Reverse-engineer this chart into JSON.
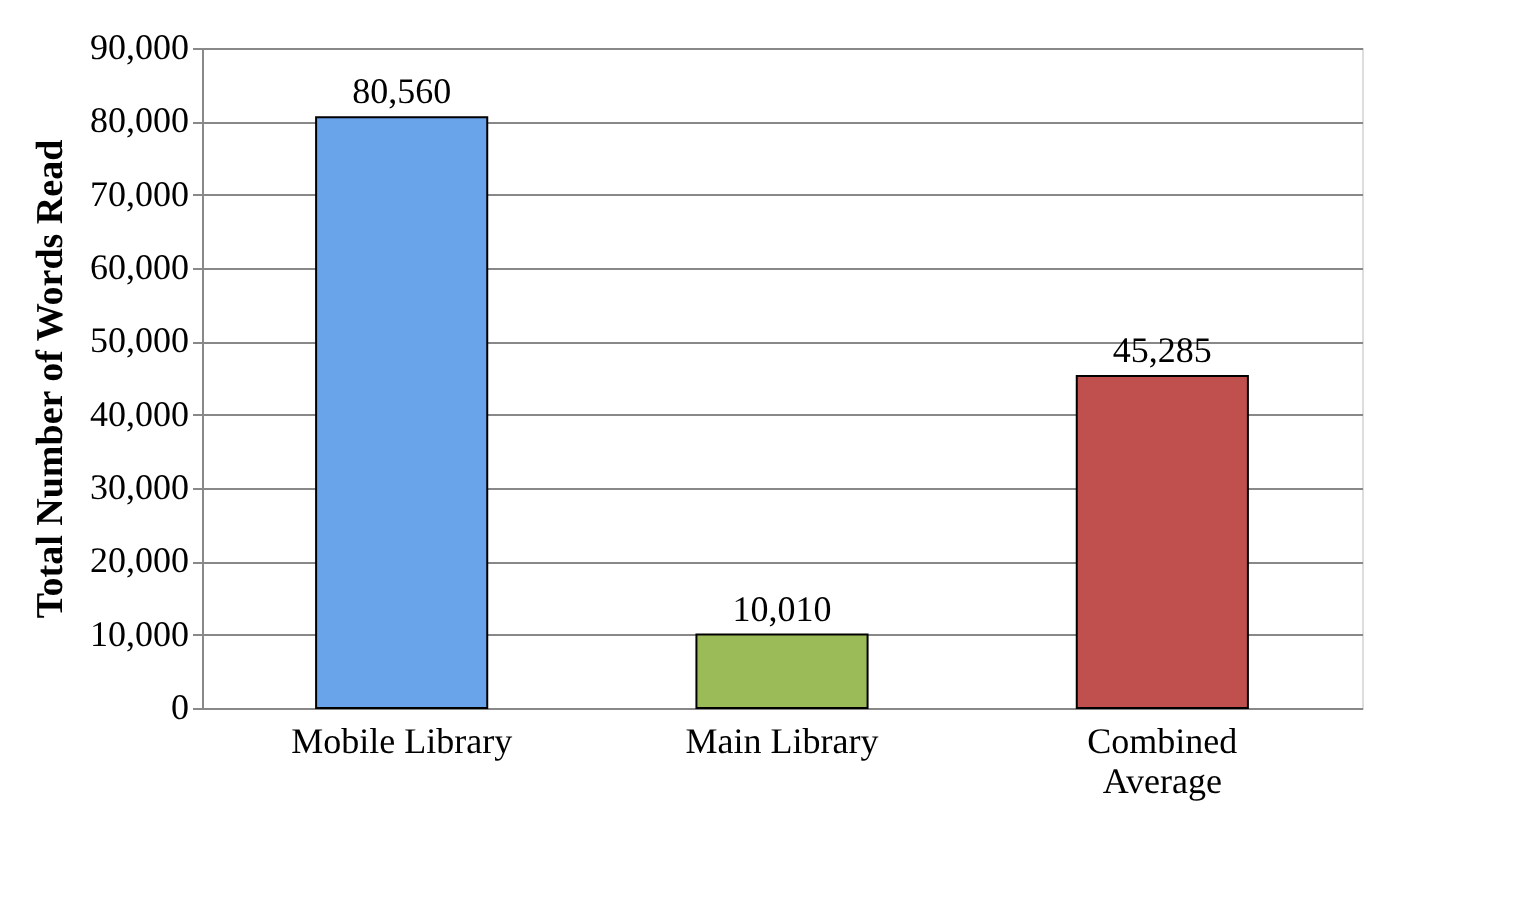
{
  "chart_data": {
    "type": "bar",
    "ylabel": "Total Number of Words Read",
    "categories": [
      "Mobile Library",
      "Main Library",
      "Combined Average"
    ],
    "values": [
      80560,
      10010,
      45285
    ],
    "value_labels": [
      "80,560",
      "10,010",
      "45,285"
    ],
    "colors": [
      "#69a3ea",
      "#9bbb59",
      "#c0504d"
    ],
    "ylim": [
      0,
      90000
    ],
    "yticks": [
      0,
      {
        "value": 10000,
        "label": "10,000"
      },
      {
        "value": 20000,
        "label": "20,000"
      },
      {
        "value": 30000,
        "label": "30,000"
      },
      {
        "value": 40000,
        "label": "40,000"
      },
      {
        "value": 50000,
        "label": "50,000"
      },
      {
        "value": 60000,
        "label": "60,000"
      },
      {
        "value": 70000,
        "label": "70,000"
      },
      {
        "value": 80000,
        "label": "80,000"
      },
      {
        "value": 90000,
        "label": "90,000"
      }
    ],
    "grid": "y",
    "legend": false
  }
}
